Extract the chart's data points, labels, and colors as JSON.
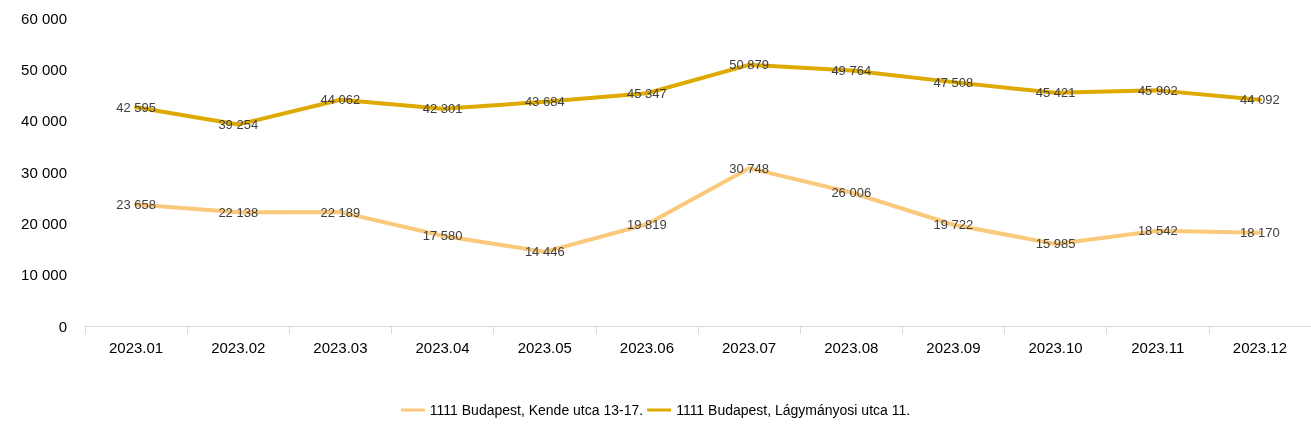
{
  "chart_data": {
    "type": "line",
    "categories": [
      "2023.01",
      "2023.02",
      "2023.03",
      "2023.04",
      "2023.05",
      "2023.06",
      "2023.07",
      "2023.08",
      "2023.09",
      "2023.10",
      "2023.11",
      "2023.12"
    ],
    "series": [
      {
        "name": "1111 Budapest, Kende utca 13-17.",
        "color": "#fbc97c",
        "values": [
          23658,
          22138,
          22189,
          17580,
          14446,
          19819,
          30748,
          26006,
          19722,
          15985,
          18542,
          18170
        ],
        "value_labels": [
          "23 658",
          "22 138",
          "22 189",
          "17 580",
          "14 446",
          "19 819",
          "30 748",
          "26 006",
          "19 722",
          "15 985",
          "18 542",
          "18 170"
        ]
      },
      {
        "name": "1111 Budapest, Lágymányosi utca 11.",
        "color": "#dea900",
        "values": [
          42595,
          39254,
          44062,
          42301,
          43684,
          45347,
          50879,
          49764,
          47508,
          45421,
          45902,
          44092
        ],
        "value_labels": [
          "42 595",
          "39 254",
          "44 062",
          "42 301",
          "43 684",
          "45 347",
          "50 879",
          "49 764",
          "47 508",
          "45 421",
          "45 902",
          "44 092"
        ]
      }
    ],
    "ylim": [
      0,
      60000
    ],
    "yticks": [
      0,
      {
        "value": 10000,
        "label": "10 000"
      },
      {
        "value": 20000,
        "label": "20 000"
      },
      {
        "value": 30000,
        "label": "30 000"
      },
      {
        "value": 40000,
        "label": "40 000"
      },
      {
        "value": 50000,
        "label": "50 000"
      },
      {
        "value": 60000,
        "label": "60 000"
      }
    ],
    "grid": false,
    "legend": "bottom",
    "marker": "none",
    "line_style": "solid"
  }
}
